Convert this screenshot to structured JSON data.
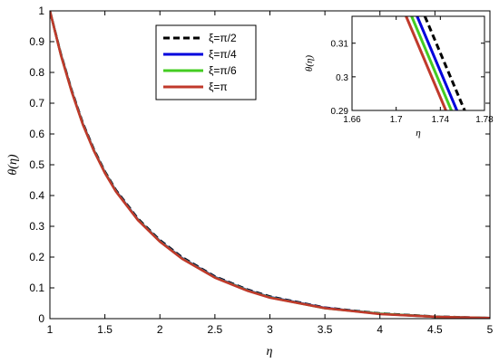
{
  "chart_data": [
    {
      "type": "line",
      "title": "",
      "xlabel": "η",
      "ylabel": "θ(η)",
      "xlim": [
        1,
        5
      ],
      "ylim": [
        0,
        1
      ],
      "xticks": [
        "1",
        "1.5",
        "2",
        "2.5",
        "3",
        "3.5",
        "4",
        "4.5",
        "5"
      ],
      "yticks": [
        "0",
        "0.1",
        "0.2",
        "0.3",
        "0.4",
        "0.5",
        "0.6",
        "0.7",
        "0.8",
        "0.9",
        "1"
      ],
      "grid": false,
      "legend": "upper-middle",
      "x": [
        1.0,
        1.1,
        1.2,
        1.3,
        1.4,
        1.5,
        1.6,
        1.8,
        2.0,
        2.2,
        2.5,
        2.8,
        3.0,
        3.5,
        4.0,
        4.5,
        5.0
      ],
      "series": [
        {
          "name": "ξ=π/2",
          "color": "#000000",
          "style": "dashed",
          "values": [
            1.0,
            0.86,
            0.74,
            0.635,
            0.55,
            0.478,
            0.418,
            0.325,
            0.255,
            0.2,
            0.137,
            0.094,
            0.072,
            0.036,
            0.017,
            0.007,
            0.002
          ]
        },
        {
          "name": "ξ=π/4",
          "color": "#0000dd",
          "style": "solid",
          "values": [
            1.0,
            0.858,
            0.737,
            0.632,
            0.547,
            0.475,
            0.415,
            0.322,
            0.252,
            0.197,
            0.135,
            0.092,
            0.07,
            0.035,
            0.016,
            0.006,
            0.002
          ]
        },
        {
          "name": "ξ=π/6",
          "color": "#44cc22",
          "style": "solid",
          "values": [
            1.0,
            0.857,
            0.736,
            0.631,
            0.546,
            0.474,
            0.414,
            0.321,
            0.251,
            0.196,
            0.134,
            0.091,
            0.069,
            0.034,
            0.016,
            0.006,
            0.002
          ]
        },
        {
          "name": "ξ=π",
          "color": "#c0392b",
          "style": "solid",
          "values": [
            1.0,
            0.856,
            0.735,
            0.63,
            0.545,
            0.473,
            0.413,
            0.32,
            0.25,
            0.195,
            0.133,
            0.09,
            0.068,
            0.034,
            0.015,
            0.006,
            0.002
          ]
        }
      ]
    },
    {
      "type": "line",
      "title": "",
      "xlabel": "η",
      "ylabel": "θ(η)",
      "xlim": [
        1.66,
        1.78
      ],
      "ylim": [
        0.29,
        0.318
      ],
      "xticks": [
        "1.66",
        "1.7",
        "1.74",
        "1.78"
      ],
      "yticks": [
        "0.29",
        "0.3",
        "0.31"
      ],
      "grid": false,
      "series": [
        {
          "name": "ξ=π/2",
          "color": "#000000",
          "style": "dashed",
          "x": [
            1.726,
            1.762
          ],
          "values": [
            0.318,
            0.29
          ]
        },
        {
          "name": "ξ=π/4",
          "color": "#0000dd",
          "style": "solid",
          "x": [
            1.719,
            1.755
          ],
          "values": [
            0.318,
            0.29
          ]
        },
        {
          "name": "ξ=π/6",
          "color": "#44cc22",
          "style": "solid",
          "x": [
            1.714,
            1.75
          ],
          "values": [
            0.318,
            0.29
          ]
        },
        {
          "name": "ξ=π",
          "color": "#c0392b",
          "style": "solid",
          "x": [
            1.709,
            1.745
          ],
          "values": [
            0.318,
            0.29
          ]
        }
      ]
    }
  ]
}
